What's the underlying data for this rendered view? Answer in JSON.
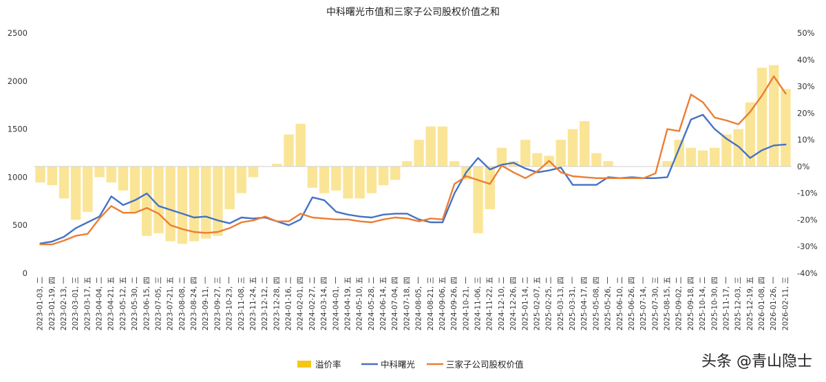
{
  "chart_data": {
    "type": "line",
    "title": "中科曙光市值和三家子公司股权价值之和",
    "y_left": {
      "ylim": [
        0,
        2500
      ],
      "ticks": [
        "0",
        "500",
        "1000",
        "1500",
        "2000",
        "2500"
      ]
    },
    "y_right": {
      "ylim": [
        -40,
        50
      ],
      "ticks": [
        "-40%",
        "-30%",
        "-20%",
        "-10%",
        "0%",
        "10%",
        "20%",
        "30%",
        "40%",
        "50%"
      ]
    },
    "x_tick_labels": [
      "2023-01-03, 二",
      "2023-01-19, 四",
      "2023-02-13, 一",
      "2023-03-01, 三",
      "2023-03-17, 五",
      "2023-04-04, 二",
      "2023-04-21, 五",
      "2023-05-12, 五",
      "2023-05-30, 二",
      "2023-06-15, 四",
      "2023-07-05, 三",
      "2023-07-21, 五",
      "2023-08-08, 二",
      "2023-08-24, 四",
      "2023-09-11, 一",
      "2023-09-27, 三",
      "2023-10-23, 一",
      "2023-11-08, 三",
      "2023-11-24, 五",
      "2023-12-12, 二",
      "2023-12-28, 四",
      "2024-01-16, 二",
      "2024-02-01, 四",
      "2024-02-27, 二",
      "2024-03-14, 四",
      "2024-04-01, 一",
      "2024-04-19, 五",
      "2024-05-10, 五",
      "2024-05-28, 二",
      "2024-06-14, 五",
      "2024-07-04, 四",
      "2024-07-18, 四",
      "2024-08-05, 一",
      "2024-08-21, 三",
      "2024-09-06, 五",
      "2024-09-26, 四",
      "2024-10-21, 一",
      "2024-11-06, 三",
      "2024-11-22, 五",
      "2024-12-10, 二",
      "2024-12-26, 四",
      "2025-01-14, 二",
      "2025-02-07, 五",
      "2025-02-25, 二",
      "2025-03-13, 四",
      "2025-03-31, 一",
      "2025-04-17, 四",
      "2025-05-08, 四",
      "2025-05-26, 一",
      "2025-06-10, 二",
      "2025-06-26, 四",
      "2025-07-14, 一",
      "2025-07-30, 三",
      "2025-08-15, 五",
      "2025-09-02, 二",
      "2025-09-18, 四",
      "2025-10-14, 二",
      "2025-10-30, 四",
      "2025-11-17, 一",
      "2025-12-03, 三",
      "2025-12-19, 五",
      "2026-01-08, 四",
      "2026-01-26, 一",
      "2026-02-11, 三"
    ],
    "series": [
      {
        "name": "溢价率",
        "kind": "bar",
        "axis": "right",
        "color": "#F5C518",
        "values": [
          -6,
          -7,
          -12,
          -20,
          -17,
          -4,
          -6,
          -9,
          -17,
          -26,
          -25,
          -28,
          -29,
          -28,
          -27,
          -26,
          -16,
          -10,
          -4,
          0,
          1,
          12,
          16,
          -8,
          -10,
          -9,
          -12,
          -12,
          -10,
          -7,
          -5,
          2,
          10,
          15,
          15,
          2,
          -5,
          -25,
          -16,
          7,
          2,
          10,
          5,
          4,
          10,
          14,
          17,
          5,
          2,
          0,
          0,
          0,
          0,
          2,
          10,
          7,
          6,
          7,
          12,
          14,
          24,
          37,
          38,
          29
        ]
      },
      {
        "name": "中科曙光",
        "kind": "line",
        "axis": "left",
        "color": "#4472C4",
        "values": [
          310,
          330,
          380,
          470,
          530,
          590,
          800,
          710,
          760,
          830,
          700,
          660,
          620,
          580,
          590,
          550,
          520,
          580,
          570,
          580,
          540,
          500,
          560,
          790,
          760,
          640,
          610,
          590,
          580,
          610,
          620,
          620,
          560,
          530,
          530,
          830,
          1050,
          1200,
          1080,
          1130,
          1150,
          1090,
          1050,
          1070,
          1100,
          920,
          920,
          920,
          1000,
          990,
          1000,
          990,
          990,
          1000,
          1300,
          1600,
          1650,
          1500,
          1400,
          1320,
          1200,
          1280,
          1330,
          1340
        ]
      },
      {
        "name": "三家子公司股权价值",
        "kind": "line",
        "axis": "left",
        "color": "#ED7D31",
        "values": [
          300,
          300,
          340,
          390,
          410,
          570,
          700,
          630,
          630,
          680,
          620,
          500,
          460,
          430,
          420,
          430,
          470,
          530,
          550,
          590,
          540,
          540,
          620,
          580,
          570,
          560,
          560,
          540,
          530,
          560,
          580,
          570,
          540,
          570,
          560,
          930,
          1010,
          970,
          930,
          1120,
          1050,
          990,
          1060,
          1170,
          1050,
          1010,
          1000,
          990,
          990,
          990,
          990,
          990,
          1040,
          1500,
          1480,
          1860,
          1780,
          1620,
          1590,
          1550,
          1680,
          1850,
          2050,
          1870
        ]
      }
    ],
    "legend": [
      "溢价率",
      "中科曙光",
      "三家子公司股权价值"
    ],
    "legend_position": "bottom"
  },
  "watermark": "头条 @青山隐士"
}
